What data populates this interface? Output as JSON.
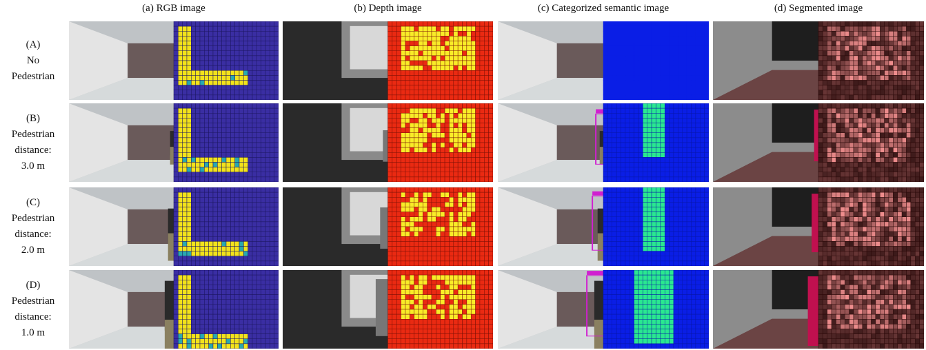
{
  "columns": [
    {
      "title": "(a) RGB image"
    },
    {
      "title": "(b) Depth image"
    },
    {
      "title": "(c) Categorized semantic image"
    },
    {
      "title": "(d) Segmented image"
    }
  ],
  "rows": [
    {
      "label_lines": [
        "(A)",
        "No",
        "Pedestrian"
      ],
      "pedestrian": false
    },
    {
      "label_lines": [
        "(B)",
        "Pedestrian",
        "distance:",
        "3.0 m"
      ],
      "pedestrian": true
    },
    {
      "label_lines": [
        "(C)",
        "Pedestrian",
        "distance:",
        "2.0 m"
      ],
      "pedestrian": true
    },
    {
      "label_lines": [
        "(D)",
        "Pedestrian",
        "distance:",
        "1.0 m"
      ],
      "pedestrian": true
    }
  ],
  "colors": {
    "grid_blue": "#3a2ea3",
    "grid_yellow": "#f2e21b",
    "grid_teal": "#2aa8b0",
    "depth_red": "#ea2a12",
    "depth_yellow": "#f9ec28",
    "semantic_blue": "#0a1ee6",
    "semantic_green": "#2ae890",
    "seg_floor": "#6b4444",
    "seg_person": "#c0104f",
    "seg_wall": "#8c8c8c",
    "heat_dark": "#3a0c0c",
    "heat_light": "#f0c8c8"
  }
}
